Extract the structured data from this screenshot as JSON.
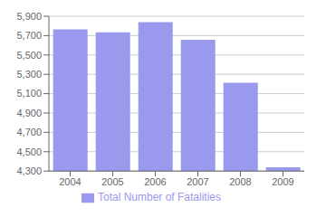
{
  "chart_data": {
    "type": "bar",
    "categories": [
      "2004",
      "2005",
      "2006",
      "2007",
      "2008",
      "2009"
    ],
    "series": [
      {
        "name": "Total Number of Fatalities",
        "color": "#9999ee",
        "values": [
          5764,
          5734,
          5840,
          5657,
          5214,
          4340
        ]
      }
    ],
    "ylim": [
      4300,
      5900
    ],
    "yticks": [
      {
        "value": 4300,
        "label": "4,300"
      },
      {
        "value": 4500,
        "label": "4,500"
      },
      {
        "value": 4700,
        "label": "4,700"
      },
      {
        "value": 4900,
        "label": "4,900"
      },
      {
        "value": 5100,
        "label": "5,100"
      },
      {
        "value": 5300,
        "label": "5,300"
      },
      {
        "value": 5500,
        "label": "5,500"
      },
      {
        "value": 5700,
        "label": "5,700"
      },
      {
        "value": 5900,
        "label": "5,900"
      }
    ],
    "grid": true,
    "legend": "bottom"
  }
}
